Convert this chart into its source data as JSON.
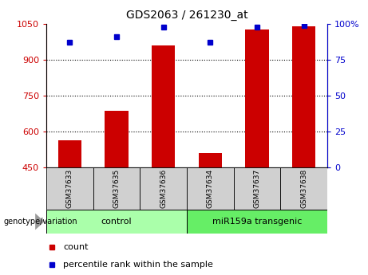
{
  "title": "GDS2063 / 261230_at",
  "categories": [
    "GSM37633",
    "GSM37635",
    "GSM37636",
    "GSM37634",
    "GSM37637",
    "GSM37638"
  ],
  "counts": [
    562,
    688,
    960,
    510,
    1025,
    1040
  ],
  "percentiles": [
    87,
    91,
    98,
    87,
    98,
    99
  ],
  "ymin": 450,
  "ymax": 1050,
  "yticks": [
    450,
    600,
    750,
    900,
    1050
  ],
  "y2min": 0,
  "y2max": 100,
  "y2ticks": [
    0,
    25,
    50,
    75,
    100
  ],
  "y2ticklabels": [
    "0",
    "25",
    "50",
    "75",
    "100%"
  ],
  "bar_color": "#cc0000",
  "dot_color": "#0000cc",
  "control_label": "control",
  "transgenic_label": "miR159a transgenic",
  "genotype_label": "genotype/variation",
  "legend_count": "count",
  "legend_percentile": "percentile rank within the sample",
  "sample_bg_color": "#d0d0d0",
  "control_color": "#aaffaa",
  "transgenic_color": "#66ee66",
  "title_color": "#000000",
  "bar_width": 0.5,
  "n_control": 3,
  "n_transgenic": 3
}
